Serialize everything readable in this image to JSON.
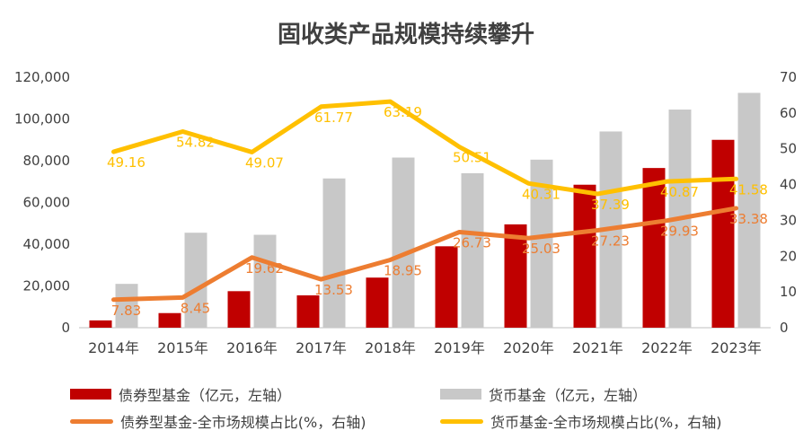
{
  "chart_data": {
    "type": "bar",
    "title": "固收类产品规模持续攀升",
    "categories": [
      "2014年",
      "2015年",
      "2016年",
      "2017年",
      "2018年",
      "2019年",
      "2020年",
      "2021年",
      "2022年",
      "2023年"
    ],
    "y_left": {
      "ticks": [
        "0",
        "20,000",
        "40,000",
        "60,000",
        "80,000",
        "100,000",
        "120,000"
      ],
      "ylim": [
        0,
        120000
      ]
    },
    "y_right": {
      "ticks": [
        "0",
        "10",
        "20",
        "30",
        "40",
        "50",
        "60",
        "70"
      ],
      "ylim": [
        0,
        70
      ]
    },
    "series": [
      {
        "name": "债券型基金（亿元，左轴）",
        "kind": "bar",
        "axis": "left",
        "color": "#C00000",
        "values": [
          3500,
          7000,
          17500,
          15500,
          24000,
          39000,
          49500,
          68500,
          76500,
          90000
        ]
      },
      {
        "name": "货币基金（亿元，左轴）",
        "kind": "bar",
        "axis": "left",
        "color": "#C8C8C8",
        "values": [
          21000,
          45500,
          44500,
          71500,
          81500,
          74000,
          80500,
          94000,
          104500,
          112500
        ]
      },
      {
        "name": "债券型基金-全市场规模占比(%，右轴)",
        "kind": "line",
        "axis": "right",
        "color": "#ED7D31",
        "values": [
          7.83,
          8.45,
          19.62,
          13.53,
          18.95,
          26.73,
          25.03,
          27.23,
          29.93,
          33.38
        ],
        "labels": [
          "7.83",
          "8.45",
          "19.62",
          "13.53",
          "18.95",
          "26.73",
          "25.03",
          "27.23",
          "29.93",
          "33.38"
        ]
      },
      {
        "name": "货币基金-全市场规模占比(%，右轴)",
        "kind": "line",
        "axis": "right",
        "color": "#FFC000",
        "values": [
          49.16,
          54.82,
          49.07,
          61.77,
          63.19,
          50.51,
          40.31,
          37.39,
          40.87,
          41.58
        ],
        "labels": [
          "49.16",
          "54.82",
          "49.07",
          "61.77",
          "63.19",
          "50.51",
          "40.31",
          "37.39",
          "40.87",
          "41.58"
        ]
      }
    ],
    "legend_position": "bottom",
    "grid": false
  }
}
